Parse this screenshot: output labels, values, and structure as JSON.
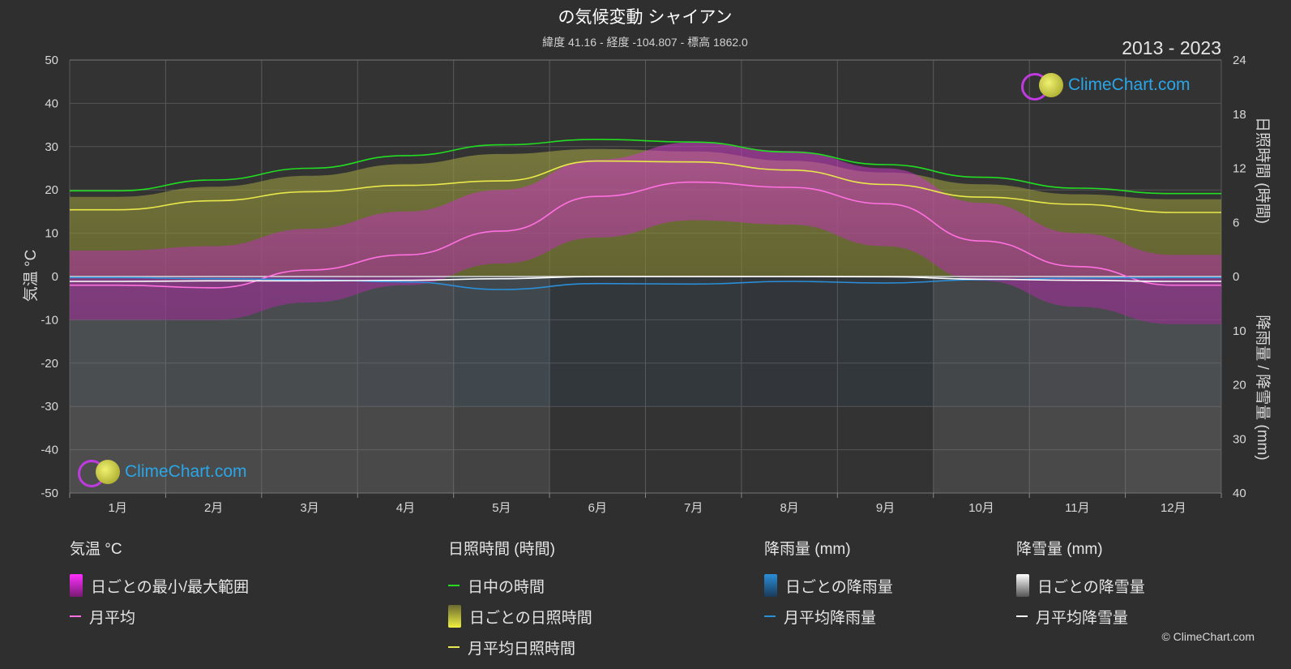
{
  "title": "の気候変動 シャイアン",
  "subtitle": "緯度 41.16 - 経度 -104.807 - 標高 1862.0",
  "year_range": "2013 - 2023",
  "logo_text": "ClimeChart.com",
  "copyright": "© ClimeChart.com",
  "chart_data": {
    "type": "line",
    "months": [
      "1月",
      "2月",
      "3月",
      "4月",
      "5月",
      "6月",
      "7月",
      "8月",
      "9月",
      "10月",
      "11月",
      "12月"
    ],
    "y_left": {
      "label": "気温 °C",
      "range": [
        -50,
        50
      ],
      "ticks": [
        50,
        40,
        30,
        20,
        10,
        0,
        -10,
        -20,
        -30,
        -40,
        -50
      ]
    },
    "y_right_top": {
      "label": "日照時間 (時間)",
      "range": [
        0,
        24
      ],
      "ticks": [
        24,
        18,
        12,
        6,
        0
      ]
    },
    "y_right_bottom": {
      "label": "降雨量 / 降雪量 (mm)",
      "range": [
        0,
        40
      ],
      "ticks": [
        10,
        20,
        30,
        40
      ]
    },
    "grid": true,
    "series": [
      {
        "name": "日中の時間",
        "axis": "sunshine_hours",
        "color": "#22dd22",
        "values": [
          9.5,
          10.7,
          12.0,
          13.4,
          14.6,
          15.2,
          14.9,
          13.8,
          12.4,
          11.0,
          9.8,
          9.2
        ]
      },
      {
        "name": "月平均日照時間",
        "axis": "sunshine_hours",
        "color": "#e8e84a",
        "values": [
          7.4,
          8.4,
          9.4,
          10.1,
          10.6,
          12.8,
          12.7,
          11.8,
          10.2,
          8.8,
          8.0,
          7.1
        ]
      },
      {
        "name": "月平均",
        "axis": "temperature_c",
        "color": "#ff70e0",
        "values": [
          -2.0,
          -2.6,
          1.5,
          5.0,
          10.5,
          18.5,
          21.8,
          20.6,
          16.8,
          8.2,
          2.3,
          -2.0
        ]
      },
      {
        "name": "月平均降雨量",
        "axis": "precip_mm",
        "color": "#2a8fd8",
        "values": [
          0.2,
          0.4,
          0.6,
          1.0,
          2.4,
          1.3,
          1.4,
          0.9,
          1.2,
          0.6,
          0.3,
          0.2
        ]
      },
      {
        "name": "月平均降雪量",
        "axis": "precip_mm",
        "color": "#ffffff",
        "values": [
          0.9,
          0.8,
          0.8,
          0.7,
          0.4,
          0.0,
          0.0,
          0.0,
          0.05,
          0.5,
          0.7,
          0.9
        ]
      }
    ],
    "daily_range_c": {
      "name": "日ごとの最小/最大範囲",
      "max": [
        6,
        7,
        11,
        15,
        20,
        27,
        31,
        29,
        25,
        17,
        10,
        5
      ],
      "min": [
        -10,
        -10,
        -6,
        -2,
        3,
        9,
        13,
        12,
        7,
        -1,
        -7,
        -11
      ]
    }
  },
  "legend": {
    "temperature": {
      "title": "気温 °C",
      "items": [
        {
          "label": "日ごとの最小/最大範囲"
        },
        {
          "label": "月平均"
        }
      ]
    },
    "sunshine": {
      "title": "日照時間 (時間)",
      "items": [
        {
          "label": "日中の時間"
        },
        {
          "label": "日ごとの日照時間"
        },
        {
          "label": "月平均日照時間"
        }
      ]
    },
    "rain": {
      "title": "降雨量 (mm)",
      "items": [
        {
          "label": "日ごとの降雨量"
        },
        {
          "label": "月平均降雨量"
        }
      ]
    },
    "snow": {
      "title": "降雪量 (mm)",
      "items": [
        {
          "label": "日ごとの降雪量"
        },
        {
          "label": "月平均降雪量"
        }
      ]
    }
  },
  "colors": {
    "background": "#2f2f2f",
    "daylight": "#22dd22",
    "sunshine": "#e8e84a",
    "temp_range": "#d23cc8",
    "temp_avg": "#ff70e0",
    "rain": "#2a8fd8",
    "snow": "#ffffff"
  }
}
